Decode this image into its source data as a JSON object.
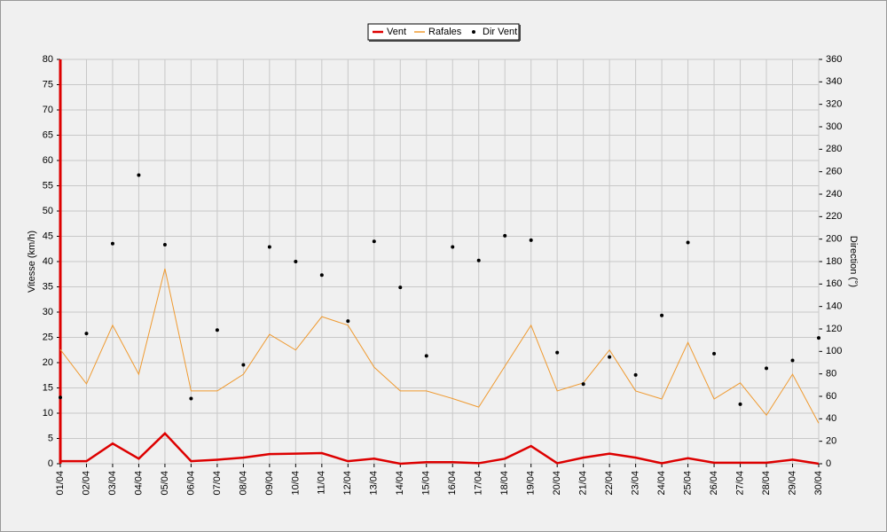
{
  "chart_data": {
    "type": "line",
    "ylabel": "Vitesse (km/h)",
    "y2label": "Direction (°)",
    "categories": [
      "01/04",
      "02/04",
      "03/04",
      "04/04",
      "05/04",
      "06/04",
      "07/04",
      "08/04",
      "09/04",
      "10/04",
      "11/04",
      "12/04",
      "13/04",
      "14/04",
      "15/04",
      "16/04",
      "17/04",
      "18/04",
      "19/04",
      "20/04",
      "21/04",
      "22/04",
      "23/04",
      "24/04",
      "25/04",
      "26/04",
      "27/04",
      "28/04",
      "29/04",
      "30/04"
    ],
    "series": [
      {
        "name": "Vent",
        "color": "#dd0000",
        "type": "line",
        "values": [
          0.5,
          0.5,
          4,
          1,
          6,
          0.5,
          0.8,
          1.2,
          1.9,
          2,
          2.1,
          0.5,
          1,
          0,
          0.3,
          0.3,
          0.1,
          1,
          3.5,
          0.1,
          1.2,
          2,
          1.2,
          0.1,
          1.1,
          0.2,
          0.2,
          0.2,
          0.8,
          0
        ]
      },
      {
        "name": "Rafales",
        "color": "#ef9a30",
        "type": "line",
        "values": [
          22.6,
          15.8,
          27.4,
          17.7,
          38.6,
          14.4,
          14.4,
          17.7,
          25.6,
          22.5,
          29.1,
          27.4,
          19.1,
          14.4,
          14.4,
          12.9,
          11.2,
          19.3,
          27.4,
          14.4,
          16,
          22.5,
          14.4,
          12.8,
          24,
          12.8,
          16,
          9.6,
          17.7,
          8
        ]
      },
      {
        "name": "Dir Vent",
        "color": "#000000",
        "type": "scatter",
        "axis": "y2",
        "values": [
          59,
          116,
          196,
          257,
          195,
          58,
          119,
          88,
          193,
          180,
          168,
          127,
          198,
          157,
          96,
          193,
          181,
          203,
          199,
          99,
          71,
          95,
          79,
          132,
          197,
          98,
          53,
          85,
          92,
          112
        ]
      }
    ],
    "ylim": [
      0,
      80
    ],
    "yticks": [
      0,
      5,
      10,
      15,
      20,
      25,
      30,
      35,
      40,
      45,
      50,
      55,
      60,
      65,
      70,
      75,
      80
    ],
    "y2lim": [
      0,
      360
    ],
    "y2ticks": [
      0,
      20,
      40,
      60,
      80,
      100,
      120,
      140,
      160,
      180,
      200,
      220,
      240,
      260,
      280,
      300,
      320,
      340,
      360
    ],
    "grid": true,
    "legend": "top"
  }
}
